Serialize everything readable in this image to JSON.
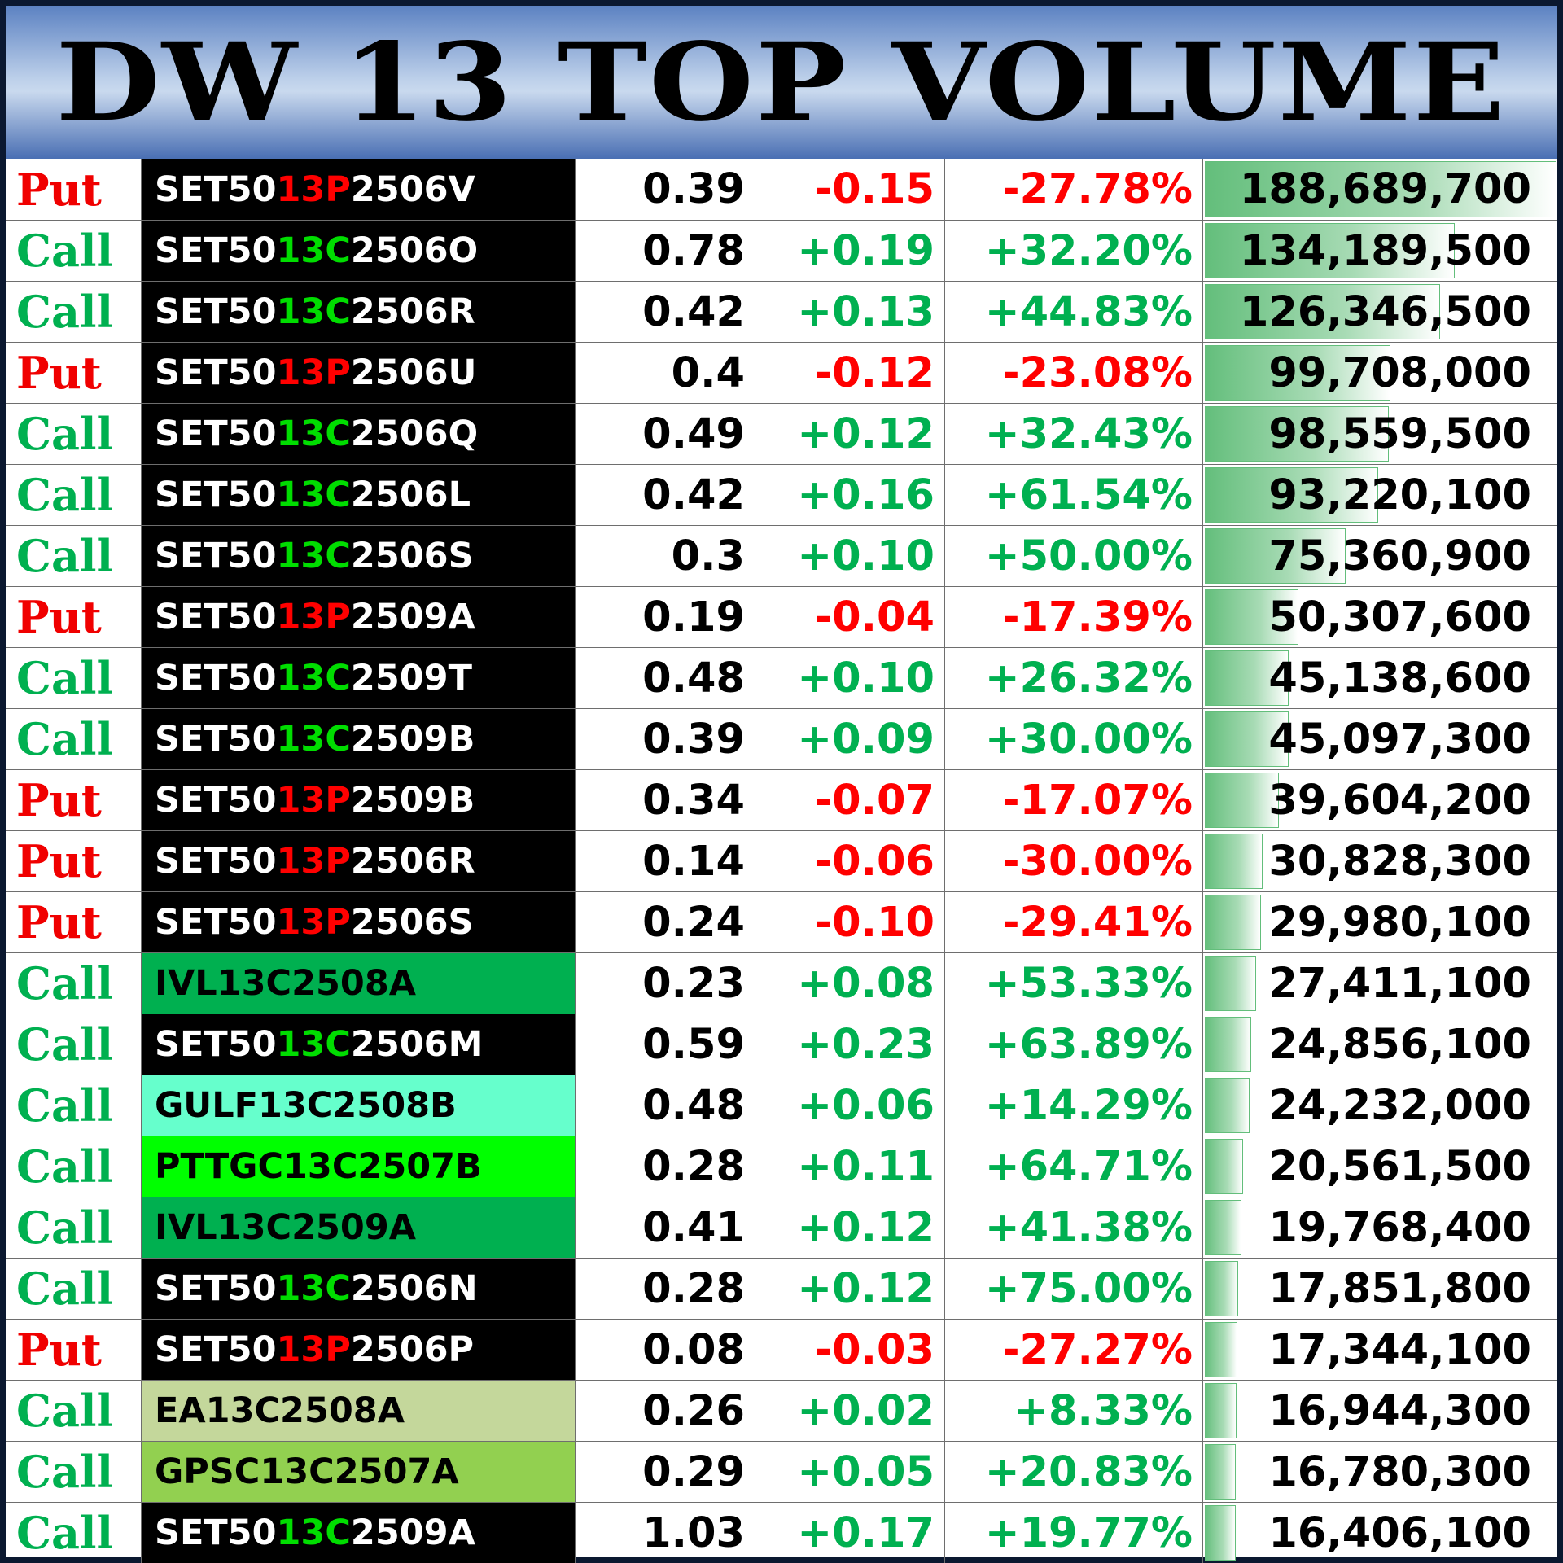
{
  "title": "DW 13 TOP VOLUME",
  "colors": {
    "put": "#f00000",
    "call": "#00b050",
    "positive": "#00b050",
    "negative": "#ff0000",
    "symbol_dark_bg": "#000000",
    "volume_bar": "#63be7b",
    "header_blue": "#4a6fb3"
  },
  "max_volume": 188689700,
  "rows": [
    {
      "type": "Put",
      "underlying": "SET50",
      "series": "13P",
      "suffix": "2506V",
      "last": "0.39",
      "change": "-0.15",
      "pct": "-27.78%",
      "volume": "188,689,700",
      "volume_value": 188689700
    },
    {
      "type": "Call",
      "underlying": "SET50",
      "series": "13C",
      "suffix": "2506O",
      "last": "0.78",
      "change": "+0.19",
      "pct": "+32.20%",
      "volume": "134,189,500",
      "volume_value": 134189500
    },
    {
      "type": "Call",
      "underlying": "SET50",
      "series": "13C",
      "suffix": "2506R",
      "last": "0.42",
      "change": "+0.13",
      "pct": "+44.83%",
      "volume": "126,346,500",
      "volume_value": 126346500
    },
    {
      "type": "Put",
      "underlying": "SET50",
      "series": "13P",
      "suffix": "2506U",
      "last": "0.4",
      "change": "-0.12",
      "pct": "-23.08%",
      "volume": "99,708,000",
      "volume_value": 99708000
    },
    {
      "type": "Call",
      "underlying": "SET50",
      "series": "13C",
      "suffix": "2506Q",
      "last": "0.49",
      "change": "+0.12",
      "pct": "+32.43%",
      "volume": "98,559,500",
      "volume_value": 98559500
    },
    {
      "type": "Call",
      "underlying": "SET50",
      "series": "13C",
      "suffix": "2506L",
      "last": "0.42",
      "change": "+0.16",
      "pct": "+61.54%",
      "volume": "93,220,100",
      "volume_value": 93220100
    },
    {
      "type": "Call",
      "underlying": "SET50",
      "series": "13C",
      "suffix": "2506S",
      "last": "0.3",
      "change": "+0.10",
      "pct": "+50.00%",
      "volume": "75,360,900",
      "volume_value": 75360900
    },
    {
      "type": "Put",
      "underlying": "SET50",
      "series": "13P",
      "suffix": "2509A",
      "last": "0.19",
      "change": "-0.04",
      "pct": "-17.39%",
      "volume": "50,307,600",
      "volume_value": 50307600
    },
    {
      "type": "Call",
      "underlying": "SET50",
      "series": "13C",
      "suffix": "2509T",
      "last": "0.48",
      "change": "+0.10",
      "pct": "+26.32%",
      "volume": "45,138,600",
      "volume_value": 45138600
    },
    {
      "type": "Call",
      "underlying": "SET50",
      "series": "13C",
      "suffix": "2509B",
      "last": "0.39",
      "change": "+0.09",
      "pct": "+30.00%",
      "volume": "45,097,300",
      "volume_value": 45097300
    },
    {
      "type": "Put",
      "underlying": "SET50",
      "series": "13P",
      "suffix": "2509B",
      "last": "0.34",
      "change": "-0.07",
      "pct": "-17.07%",
      "volume": "39,604,200",
      "volume_value": 39604200
    },
    {
      "type": "Put",
      "underlying": "SET50",
      "series": "13P",
      "suffix": "2506R",
      "last": "0.14",
      "change": "-0.06",
      "pct": "-30.00%",
      "volume": "30,828,300",
      "volume_value": 30828300
    },
    {
      "type": "Put",
      "underlying": "SET50",
      "series": "13P",
      "suffix": "2506S",
      "last": "0.24",
      "change": "-0.10",
      "pct": "-29.41%",
      "volume": "29,980,100",
      "volume_value": 29980100
    },
    {
      "type": "Call",
      "symbol": "IVL13C2508A",
      "symbol_bg": "#00b050",
      "last": "0.23",
      "change": "+0.08",
      "pct": "+53.33%",
      "volume": "27,411,100",
      "volume_value": 27411100
    },
    {
      "type": "Call",
      "underlying": "SET50",
      "series": "13C",
      "suffix": "2506M",
      "last": "0.59",
      "change": "+0.23",
      "pct": "+63.89%",
      "volume": "24,856,100",
      "volume_value": 24856100
    },
    {
      "type": "Call",
      "symbol": "GULF13C2508B",
      "symbol_bg": "#66ffcc",
      "last": "0.48",
      "change": "+0.06",
      "pct": "+14.29%",
      "volume": "24,232,000",
      "volume_value": 24232000
    },
    {
      "type": "Call",
      "symbol": "PTTGC13C2507B",
      "symbol_bg": "#00ff00",
      "last": "0.28",
      "change": "+0.11",
      "pct": "+64.71%",
      "volume": "20,561,500",
      "volume_value": 20561500
    },
    {
      "type": "Call",
      "symbol": "IVL13C2509A",
      "symbol_bg": "#00b050",
      "last": "0.41",
      "change": "+0.12",
      "pct": "+41.38%",
      "volume": "19,768,400",
      "volume_value": 19768400
    },
    {
      "type": "Call",
      "underlying": "SET50",
      "series": "13C",
      "suffix": "2506N",
      "last": "0.28",
      "change": "+0.12",
      "pct": "+75.00%",
      "volume": "17,851,800",
      "volume_value": 17851800
    },
    {
      "type": "Put",
      "underlying": "SET50",
      "series": "13P",
      "suffix": "2506P",
      "last": "0.08",
      "change": "-0.03",
      "pct": "-27.27%",
      "volume": "17,344,100",
      "volume_value": 17344100
    },
    {
      "type": "Call",
      "symbol": "EA13C2508A",
      "symbol_bg": "#c4d79b",
      "last": "0.26",
      "change": "+0.02",
      "pct": "+8.33%",
      "volume": "16,944,300",
      "volume_value": 16944300
    },
    {
      "type": "Call",
      "symbol": "GPSC13C2507A",
      "symbol_bg": "#92d050",
      "last": "0.29",
      "change": "+0.05",
      "pct": "+20.83%",
      "volume": "16,780,300",
      "volume_value": 16780300
    },
    {
      "type": "Call",
      "underlying": "SET50",
      "series": "13C",
      "suffix": "2509A",
      "last": "1.03",
      "change": "+0.17",
      "pct": "+19.77%",
      "volume": "16,406,100",
      "volume_value": 16406100
    }
  ]
}
